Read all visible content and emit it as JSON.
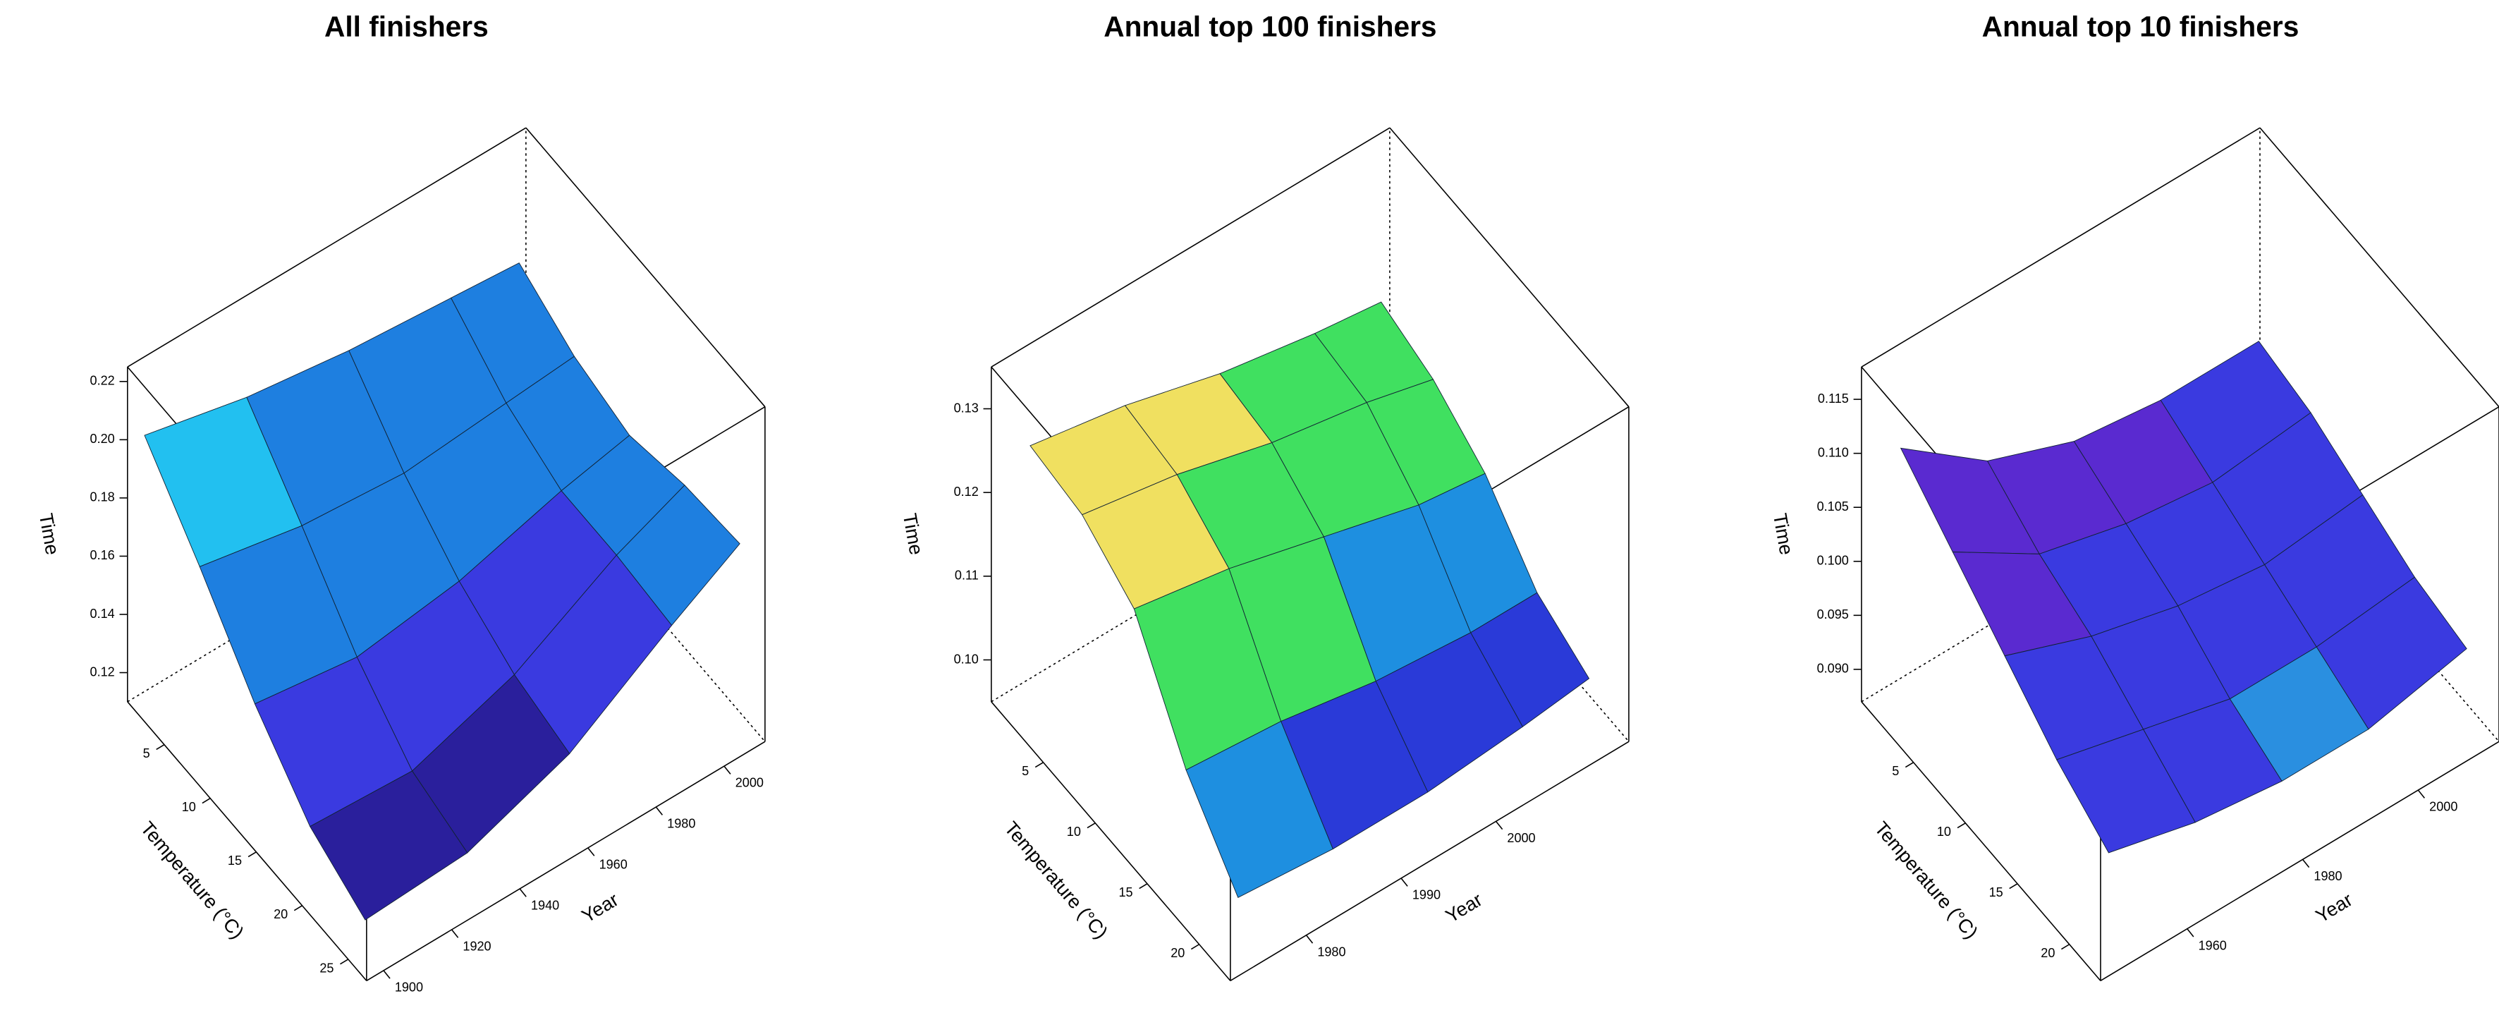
{
  "chart_data": [
    {
      "type": "surface",
      "title": "All finishers",
      "xlabel": "Temperature (°C)",
      "ylabel": "Year",
      "zlabel": "Time",
      "xlim": [
        1,
        27
      ],
      "ylim": [
        1895,
        2012
      ],
      "zlim": [
        0.11,
        0.225
      ],
      "xticks": [
        5,
        10,
        15,
        20,
        25
      ],
      "yticks": [
        1900,
        1920,
        1940,
        1960,
        1980,
        2000
      ],
      "zticks": [
        0.12,
        0.14,
        0.16,
        0.18,
        {
          "value": 0.2,
          "label": "0.20"
        },
        0.22
      ],
      "x": [
        1,
        7,
        13,
        19,
        25
      ],
      "y": [
        1900,
        1930,
        1960,
        1990,
        2010
      ],
      "z": [
        [
          0.198,
          0.19,
          0.185,
          0.182,
          0.18
        ],
        [
          0.175,
          0.168,
          0.165,
          0.168,
          0.17
        ],
        [
          0.15,
          0.145,
          0.15,
          0.16,
          0.165
        ],
        [
          0.13,
          0.128,
          0.14,
          0.16,
          0.17
        ],
        [
          0.12,
          0.122,
          0.135,
          0.158,
          0.172
        ]
      ],
      "colors": [
        "#2a1f9c",
        "#3a3ae0",
        "#1e7fe0",
        "#22c0f0",
        "#6fe03a"
      ]
    },
    {
      "type": "surface",
      "title": "Annual top 100 finishers",
      "xlabel": "Temperature (°C)",
      "ylabel": "Year",
      "zlabel": "Time",
      "xlim": [
        0,
        23
      ],
      "ylim": [
        1972,
        2014
      ],
      "zlim": [
        0.095,
        0.135
      ],
      "xticks": [
        5,
        10,
        15,
        20
      ],
      "yticks": [
        1980,
        1990,
        2000
      ],
      "zticks": [
        {
          "value": 0.1,
          "label": "0.10"
        },
        0.11,
        0.12,
        0.13
      ],
      "x": [
        1,
        6,
        11,
        16,
        21
      ],
      "y": [
        1975,
        1985,
        1995,
        2005,
        2012
      ],
      "z": [
        [
          0.125,
          0.123,
          0.12,
          0.118,
          0.117
        ],
        [
          0.124,
          0.122,
          0.119,
          0.117,
          0.115
        ],
        [
          0.12,
          0.118,
          0.115,
          0.112,
          0.111
        ],
        [
          0.108,
          0.107,
          0.105,
          0.104,
          0.104
        ],
        [
          0.1,
          0.099,
          0.099,
          0.1,
          0.101
        ]
      ],
      "colors": [
        "#2a3ad8",
        "#1e8fe0",
        "#40e060",
        "#f0e060",
        "#f5d5a0"
      ]
    },
    {
      "type": "surface",
      "title": "Annual top 10 finishers",
      "xlabel": "Temperature (°C)",
      "ylabel": "Year",
      "zlabel": "Time",
      "xlim": [
        0,
        23
      ],
      "ylim": [
        1945,
        2014
      ],
      "zlim": [
        0.087,
        0.118
      ],
      "xticks": [
        5,
        10,
        15,
        20
      ],
      "yticks": [
        1960,
        1980,
        2000
      ],
      "zticks": [
        {
          "value": 0.09,
          "label": "0.090"
        },
        0.095,
        {
          "value": 0.1,
          "label": "0.100"
        },
        0.105,
        {
          "value": 0.11,
          "label": "0.110"
        },
        0.115
      ],
      "x": [
        1,
        6,
        11,
        16,
        21
      ],
      "y": [
        1950,
        1965,
        1980,
        1995,
        2012
      ],
      "z": [
        [
          0.11,
          0.104,
          0.101,
          0.1,
          0.1
        ],
        [
          0.106,
          0.101,
          0.099,
          0.098,
          0.099
        ],
        [
          0.102,
          0.099,
          0.097,
          0.096,
          0.097
        ],
        [
          0.098,
          0.096,
          0.094,
          0.094,
          0.095
        ],
        [
          0.095,
          0.093,
          0.092,
          0.092,
          0.094
        ]
      ],
      "colors": [
        "#2a8fe0",
        "#3a3ae0",
        "#5a2ad0",
        "#40e040",
        "#7a3ae0"
      ]
    }
  ]
}
